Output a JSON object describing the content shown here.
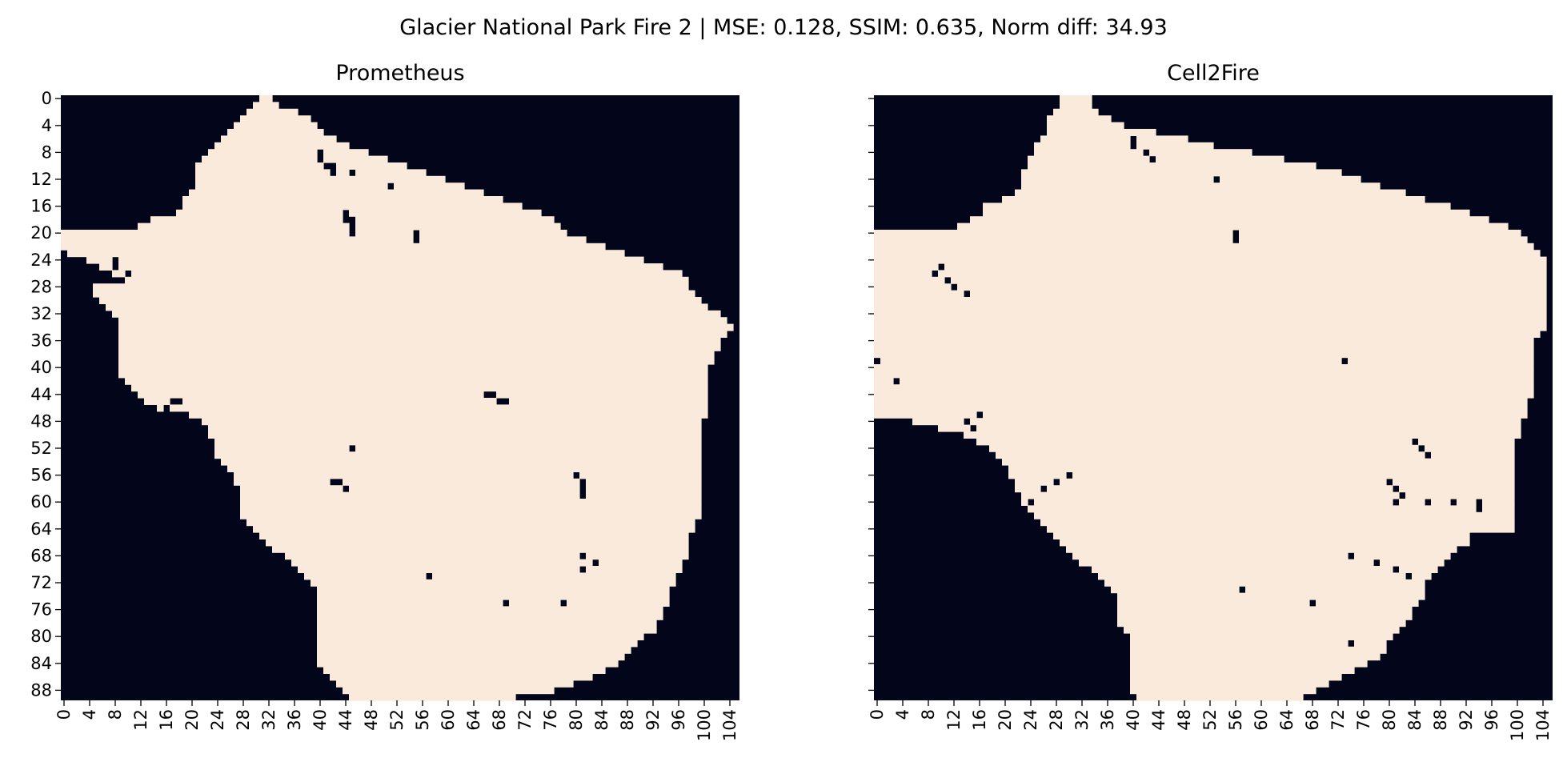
{
  "figure": {
    "suptitle": "Glacier National Park Fire 2 | MSE: 0.128, SSIM: 0.635, Norm diff: 34.93"
  },
  "colors": {
    "burned": "#faeadc",
    "unburned": "#03051a"
  },
  "chart_data": [
    {
      "type": "heatmap",
      "title": "Prometheus",
      "xlabel": "",
      "ylabel": "",
      "grid": {
        "rows": 90,
        "cols": 106
      },
      "xticks": [
        0,
        4,
        8,
        12,
        16,
        20,
        24,
        28,
        32,
        36,
        40,
        44,
        48,
        52,
        56,
        60,
        64,
        68,
        72,
        76,
        80,
        84,
        88,
        92,
        96,
        100,
        104
      ],
      "yticks": [
        0,
        4,
        8,
        12,
        16,
        20,
        24,
        28,
        32,
        36,
        40,
        44,
        48,
        52,
        56,
        60,
        64,
        68,
        72,
        76,
        80,
        84,
        88
      ],
      "values": "binary (1 = burned, 0 = unburned)",
      "extent_by_row": [
        [
          31,
          32
        ],
        [
          30,
          33
        ],
        [
          29,
          36
        ],
        [
          28,
          38
        ],
        [
          27,
          39
        ],
        [
          26,
          40
        ],
        [
          25,
          42
        ],
        [
          24,
          44
        ],
        [
          23,
          47
        ],
        [
          22,
          50
        ],
        [
          21,
          53
        ],
        [
          21,
          56
        ],
        [
          21,
          59
        ],
        [
          21,
          62
        ],
        [
          20,
          65
        ],
        [
          19,
          68
        ],
        [
          19,
          71
        ],
        [
          18,
          74
        ],
        [
          14,
          76
        ],
        [
          12,
          77
        ],
        [
          0,
          78
        ],
        [
          0,
          81
        ],
        [
          0,
          84
        ],
        [
          1,
          87
        ],
        [
          4,
          90
        ],
        [
          6,
          93
        ],
        [
          8,
          96
        ],
        [
          9,
          97
        ],
        [
          5,
          97
        ],
        [
          5,
          98
        ],
        [
          6,
          99
        ],
        [
          7,
          100
        ],
        [
          8,
          102
        ],
        [
          9,
          103
        ],
        [
          9,
          104
        ],
        [
          9,
          103
        ],
        [
          9,
          102
        ],
        [
          9,
          102
        ],
        [
          9,
          101
        ],
        [
          9,
          101
        ],
        [
          9,
          100
        ],
        [
          9,
          100
        ],
        [
          10,
          100
        ],
        [
          11,
          100
        ],
        [
          12,
          100
        ],
        [
          13,
          100
        ],
        [
          15,
          100
        ],
        [
          20,
          100
        ],
        [
          22,
          99
        ],
        [
          23,
          99
        ],
        [
          23,
          99
        ],
        [
          24,
          99
        ],
        [
          24,
          99
        ],
        [
          24,
          99
        ],
        [
          25,
          99
        ],
        [
          26,
          99
        ],
        [
          27,
          99
        ],
        [
          27,
          99
        ],
        [
          28,
          99
        ],
        [
          28,
          99
        ],
        [
          28,
          99
        ],
        [
          28,
          99
        ],
        [
          28,
          99
        ],
        [
          29,
          98
        ],
        [
          30,
          98
        ],
        [
          31,
          97
        ],
        [
          32,
          97
        ],
        [
          33,
          97
        ],
        [
          35,
          97
        ],
        [
          36,
          96
        ],
        [
          37,
          96
        ],
        [
          38,
          95
        ],
        [
          39,
          95
        ],
        [
          40,
          94
        ],
        [
          40,
          94
        ],
        [
          40,
          94
        ],
        [
          40,
          93
        ],
        [
          40,
          93
        ],
        [
          40,
          92
        ],
        [
          40,
          92
        ],
        [
          40,
          90
        ],
        [
          40,
          89
        ],
        [
          40,
          88
        ],
        [
          40,
          87
        ],
        [
          40,
          86
        ],
        [
          41,
          84
        ],
        [
          42,
          82
        ],
        [
          43,
          79
        ],
        [
          44,
          76
        ],
        [
          45,
          70
        ]
      ],
      "holes": [
        [
          [
            8,
            40
          ],
          [
            9,
            40
          ],
          [
            10,
            41
          ],
          [
            10,
            42
          ],
          [
            11,
            42
          ]
        ],
        [
          [
            17,
            44
          ],
          [
            18,
            44
          ],
          [
            18,
            45
          ],
          [
            19,
            45
          ],
          [
            20,
            45
          ]
        ],
        [
          [
            20,
            55
          ],
          [
            21,
            55
          ]
        ],
        [
          [
            44,
            66
          ],
          [
            44,
            67
          ],
          [
            45,
            68
          ],
          [
            45,
            69
          ]
        ],
        [
          [
            45,
            17
          ],
          [
            45,
            18
          ],
          [
            46,
            16
          ]
        ],
        [
          [
            57,
            42
          ],
          [
            57,
            43
          ],
          [
            58,
            44
          ]
        ],
        [
          [
            56,
            80
          ],
          [
            57,
            81
          ],
          [
            58,
            81
          ],
          [
            59,
            81
          ]
        ],
        [
          [
            68,
            81
          ],
          [
            69,
            83
          ],
          [
            70,
            81
          ]
        ],
        [
          [
            71,
            57
          ]
        ],
        [
          [
            75,
            69
          ]
        ],
        [
          [
            75,
            78
          ]
        ],
        [
          [
            52,
            45
          ]
        ],
        [
          [
            11,
            45
          ]
        ],
        [
          [
            13,
            51
          ]
        ],
        [
          [
            24,
            8
          ],
          [
            25,
            8
          ],
          [
            26,
            10
          ],
          [
            27,
            9
          ]
        ]
      ]
    },
    {
      "type": "heatmap",
      "title": "Cell2Fire",
      "xlabel": "",
      "ylabel": "",
      "grid": {
        "rows": 90,
        "cols": 106
      },
      "xticks": [
        0,
        4,
        8,
        12,
        16,
        20,
        24,
        28,
        32,
        36,
        40,
        44,
        48,
        52,
        56,
        60,
        64,
        68,
        72,
        76,
        80,
        84,
        88,
        92,
        96,
        100,
        104
      ],
      "yticks": [
        0,
        4,
        8,
        12,
        16,
        20,
        24,
        28,
        32,
        36,
        40,
        44,
        48,
        52,
        56,
        60,
        64,
        68,
        72,
        76,
        80,
        84,
        88
      ],
      "values": "binary (1 = burned, 0 = unburned)",
      "extent_by_row": [
        [
          29,
          33
        ],
        [
          29,
          33
        ],
        [
          28,
          34
        ],
        [
          27,
          36
        ],
        [
          27,
          38
        ],
        [
          27,
          43
        ],
        [
          26,
          48
        ],
        [
          25,
          52
        ],
        [
          25,
          58
        ],
        [
          24,
          63
        ],
        [
          24,
          68
        ],
        [
          23,
          72
        ],
        [
          23,
          75
        ],
        [
          23,
          78
        ],
        [
          22,
          82
        ],
        [
          20,
          85
        ],
        [
          17,
          89
        ],
        [
          17,
          92
        ],
        [
          15,
          95
        ],
        [
          13,
          98
        ],
        [
          0,
          100
        ],
        [
          0,
          101
        ],
        [
          0,
          102
        ],
        [
          0,
          103
        ],
        [
          0,
          104
        ],
        [
          0,
          104
        ],
        [
          0,
          104
        ],
        [
          0,
          104
        ],
        [
          0,
          104
        ],
        [
          0,
          104
        ],
        [
          0,
          104
        ],
        [
          0,
          104
        ],
        [
          0,
          104
        ],
        [
          0,
          104
        ],
        [
          0,
          104
        ],
        [
          0,
          103
        ],
        [
          0,
          102
        ],
        [
          0,
          102
        ],
        [
          0,
          102
        ],
        [
          0,
          102
        ],
        [
          0,
          102
        ],
        [
          0,
          102
        ],
        [
          0,
          102
        ],
        [
          0,
          102
        ],
        [
          0,
          102
        ],
        [
          0,
          101
        ],
        [
          0,
          101
        ],
        [
          0,
          101
        ],
        [
          6,
          100
        ],
        [
          10,
          100
        ],
        [
          13,
          100
        ],
        [
          16,
          99
        ],
        [
          18,
          99
        ],
        [
          19,
          99
        ],
        [
          20,
          99
        ],
        [
          21,
          99
        ],
        [
          21,
          99
        ],
        [
          22,
          99
        ],
        [
          22,
          99
        ],
        [
          23,
          99
        ],
        [
          23,
          99
        ],
        [
          24,
          99
        ],
        [
          25,
          99
        ],
        [
          26,
          99
        ],
        [
          27,
          99
        ],
        [
          28,
          92
        ],
        [
          29,
          92
        ],
        [
          30,
          90
        ],
        [
          31,
          89
        ],
        [
          32,
          88
        ],
        [
          34,
          87
        ],
        [
          35,
          86
        ],
        [
          36,
          85
        ],
        [
          37,
          85
        ],
        [
          38,
          85
        ],
        [
          38,
          84
        ],
        [
          38,
          83
        ],
        [
          38,
          83
        ],
        [
          38,
          82
        ],
        [
          39,
          81
        ],
        [
          40,
          80
        ],
        [
          40,
          79
        ],
        [
          40,
          79
        ],
        [
          40,
          78
        ],
        [
          40,
          76
        ],
        [
          40,
          74
        ],
        [
          40,
          72
        ],
        [
          40,
          70
        ],
        [
          40,
          68
        ],
        [
          41,
          66
        ]
      ],
      "holes": [
        [
          [
            6,
            40
          ],
          [
            7,
            40
          ],
          [
            8,
            42
          ],
          [
            9,
            43
          ]
        ],
        [
          [
            20,
            56
          ],
          [
            21,
            56
          ]
        ],
        [
          [
            39,
            73
          ]
        ],
        [
          [
            51,
            84
          ],
          [
            52,
            85
          ],
          [
            53,
            86
          ]
        ],
        [
          [
            57,
            80
          ],
          [
            58,
            81
          ],
          [
            59,
            82
          ],
          [
            60,
            81
          ]
        ],
        [
          [
            60,
            86
          ],
          [
            60,
            90
          ],
          [
            60,
            94
          ],
          [
            61,
            94
          ]
        ],
        [
          [
            68,
            74
          ],
          [
            69,
            78
          ],
          [
            70,
            81
          ],
          [
            71,
            83
          ]
        ],
        [
          [
            47,
            16
          ],
          [
            48,
            14
          ],
          [
            49,
            15
          ],
          [
            50,
            13
          ]
        ],
        [
          [
            25,
            10
          ],
          [
            26,
            9
          ],
          [
            27,
            11
          ],
          [
            28,
            12
          ],
          [
            29,
            14
          ]
        ],
        [
          [
            42,
            3
          ]
        ],
        [
          [
            39,
            0
          ]
        ],
        [
          [
            75,
            68
          ]
        ],
        [
          [
            73,
            57
          ]
        ],
        [
          [
            81,
            74
          ]
        ],
        [
          [
            12,
            53
          ]
        ],
        [
          [
            56,
            30
          ],
          [
            57,
            28
          ],
          [
            58,
            26
          ],
          [
            60,
            24
          ]
        ]
      ]
    }
  ]
}
